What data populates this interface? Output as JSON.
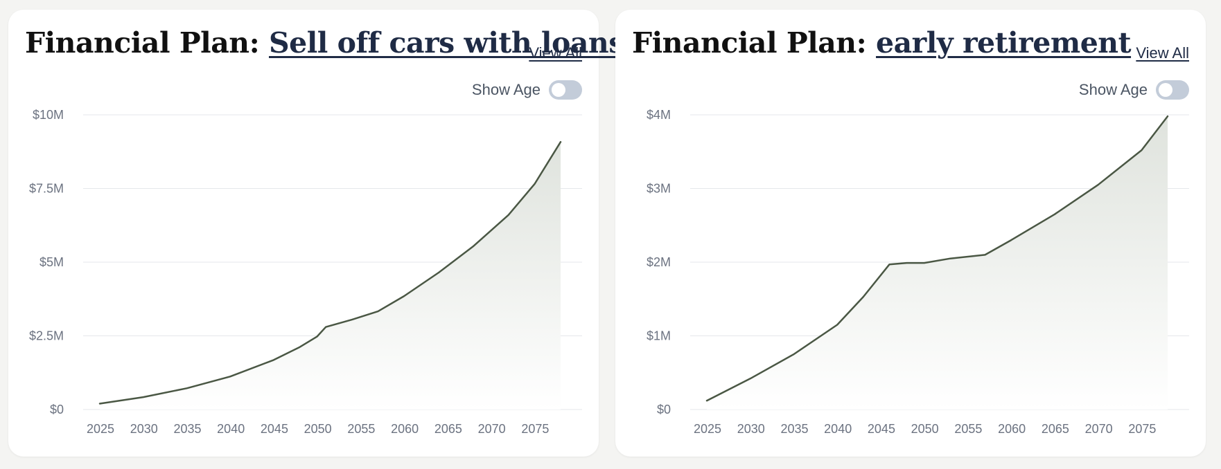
{
  "colors": {
    "line": "#4a5744",
    "grid": "#e5e7eb",
    "area_top": "#dfe3dd",
    "toggle_off": "#c3ccd9"
  },
  "cards": [
    {
      "title_prefix": "Financial Plan:",
      "plan_name": "Sell off cars with loans",
      "view_all_label": "View All",
      "show_age_label": "Show Age",
      "show_age_enabled": false
    },
    {
      "title_prefix": "Financial Plan:",
      "plan_name": "early retirement",
      "view_all_label": "View All",
      "show_age_label": "Show Age",
      "show_age_enabled": false
    }
  ],
  "chart_data": [
    {
      "type": "area",
      "title": "",
      "xlabel": "",
      "ylabel": "",
      "xlim": [
        2025,
        2078
      ],
      "ylim": [
        0,
        10000000
      ],
      "grid": true,
      "legend": "none",
      "x_ticks": [
        2025,
        2030,
        2035,
        2040,
        2045,
        2050,
        2055,
        2060,
        2065,
        2070,
        2075
      ],
      "x_tick_labels": [
        "2025",
        "2030",
        "2035",
        "2040",
        "2045",
        "2050",
        "2055",
        "2060",
        "2065",
        "2070",
        "2075"
      ],
      "y_ticks": [
        0,
        2500000,
        5000000,
        7500000,
        10000000
      ],
      "y_tick_labels": [
        "$0",
        "$2.5M",
        "$5M",
        "$7.5M",
        "$10M"
      ],
      "series": [
        {
          "x": [
            2025,
            2030,
            2035,
            2040,
            2045,
            2048,
            2050,
            2051,
            2054,
            2057,
            2060,
            2064,
            2068,
            2072,
            2075,
            2078
          ],
          "values": [
            200000,
            420000,
            720000,
            1120000,
            1680000,
            2120000,
            2480000,
            2800000,
            3050000,
            3330000,
            3850000,
            4650000,
            5550000,
            6600000,
            7650000,
            9080000
          ]
        }
      ]
    },
    {
      "type": "area",
      "title": "",
      "xlabel": "",
      "ylabel": "",
      "xlim": [
        2025,
        2078
      ],
      "ylim": [
        0,
        4000000
      ],
      "grid": true,
      "legend": "none",
      "x_ticks": [
        2025,
        2030,
        2035,
        2040,
        2045,
        2050,
        2055,
        2060,
        2065,
        2070,
        2075
      ],
      "x_tick_labels": [
        "2025",
        "2030",
        "2035",
        "2040",
        "2045",
        "2050",
        "2055",
        "2060",
        "2065",
        "2070",
        "2075"
      ],
      "y_ticks": [
        0,
        1000000,
        2000000,
        3000000,
        4000000
      ],
      "y_tick_labels": [
        "$0",
        "$1M",
        "$2M",
        "$3M",
        "$4M"
      ],
      "series": [
        {
          "x": [
            2025,
            2030,
            2035,
            2040,
            2043,
            2046,
            2048,
            2050,
            2053,
            2057,
            2060,
            2065,
            2070,
            2075,
            2078
          ],
          "values": [
            120000,
            420000,
            750000,
            1150000,
            1530000,
            1970000,
            1990000,
            1990000,
            2050000,
            2100000,
            2300000,
            2650000,
            3050000,
            3520000,
            3980000
          ]
        }
      ]
    }
  ]
}
